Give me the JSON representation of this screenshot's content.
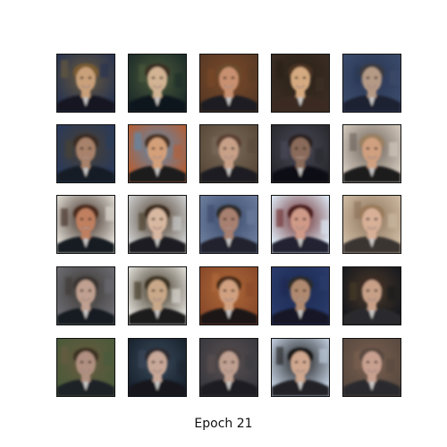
{
  "figure": {
    "caption": "Epoch 21",
    "grid": {
      "rows": 5,
      "cols": 5
    }
  },
  "samples": [
    {
      "bg": "#2a3550",
      "accent": "#6b5a3c",
      "skin": "#c9a07a",
      "hair": "#7a5b32",
      "suit": "#151821"
    },
    {
      "bg": "#1f2e2a",
      "accent": "#4c5a3a",
      "skin": "#d2b393",
      "hair": "#3a2f22",
      "suit": "#10131a"
    },
    {
      "bg": "#5a3a25",
      "accent": "#7a4a2a",
      "skin": "#c89070",
      "hair": "#6a4a2a",
      "suit": "#1a1c24"
    },
    {
      "bg": "#3a2c22",
      "accent": "#2a2218",
      "skin": "#d6aa80",
      "hair": "#4a3020",
      "suit": "#3a2a22"
    },
    {
      "bg": "#3a4a6a",
      "accent": "#2a3552",
      "skin": "#b59a86",
      "hair": "#3a3a40",
      "suit": "#1a2030"
    },
    {
      "bg": "#2a3a5a",
      "accent": "#4a4030",
      "skin": "#a8826a",
      "hair": "#3a2c22",
      "suit": "#161a26"
    },
    {
      "bg": "#b0603a",
      "accent": "#5a8ab0",
      "skin": "#d4a07a",
      "hair": "#4a3020",
      "suit": "#1a1a1a"
    },
    {
      "bg": "#5a4a3a",
      "accent": "#7a6a5a",
      "skin": "#c8a088",
      "hair": "#5a4030",
      "suit": "#1e1e24"
    },
    {
      "bg": "#2a2a30",
      "accent": "#4a4a58",
      "skin": "#8a6a5a",
      "hair": "#2a2020",
      "suit": "#101014"
    },
    {
      "bg": "#cfc4b8",
      "accent": "#6a6058",
      "skin": "#d0a080",
      "hair": "#9a8060",
      "suit": "#1a1a1e"
    },
    {
      "bg": "#d8d4cc",
      "accent": "#3a2a22",
      "skin": "#c08060",
      "hair": "#4a2a1a",
      "suit": "#181a22"
    },
    {
      "bg": "#c8c8c8",
      "accent": "#4a3a2a",
      "skin": "#d8b8a0",
      "hair": "#3a2a1a",
      "suit": "#1a1a20"
    },
    {
      "bg": "#6a7a9a",
      "accent": "#3a4a6a",
      "skin": "#a88070",
      "hair": "#2a2a2a",
      "suit": "#20242e"
    },
    {
      "bg": "#d8e2ee",
      "accent": "#6a2a2a",
      "skin": "#d09a88",
      "hair": "#4a1a1a",
      "suit": "#202430"
    },
    {
      "bg": "#cbb8a0",
      "accent": "#8a7058",
      "skin": "#d8b098",
      "hair": "#9a7a5a",
      "suit": "#3a3430"
    },
    {
      "bg": "#6a6a70",
      "accent": "#3a3530",
      "skin": "#c0a090",
      "hair": "#3a3530",
      "suit": "#181a20"
    },
    {
      "bg": "#d8d6d0",
      "accent": "#3a3020",
      "skin": "#c8a888",
      "hair": "#3a3020",
      "suit": "#1a1a1a"
    },
    {
      "bg": "#8a4a2a",
      "accent": "#b06a3a",
      "skin": "#d0a080",
      "hair": "#4a2a18",
      "suit": "#1a1616"
    },
    {
      "bg": "#2a3a6a",
      "accent": "#1a2a50",
      "skin": "#b08a70",
      "hair": "#2a2a2a",
      "suit": "#141826"
    },
    {
      "bg": "#1a1a1e",
      "accent": "#4a3a2a",
      "skin": "#c8a088",
      "hair": "#3a2a20",
      "suit": "#2a2a2e"
    },
    {
      "bg": "#4a5a3a",
      "accent": "#6a5a40",
      "skin": "#b09080",
      "hair": "#3a3020",
      "suit": "#1e2028"
    },
    {
      "bg": "#1a2430",
      "accent": "#3a4a5a",
      "skin": "#c8a898",
      "hair": "#2a2a30",
      "suit": "#12161e"
    },
    {
      "bg": "#3a3a40",
      "accent": "#5a5050",
      "skin": "#c0a090",
      "hair": "#4a4040",
      "suit": "#1a1a20"
    },
    {
      "bg": "#b8c4d4",
      "accent": "#1a1a1a",
      "skin": "#d0a890",
      "hair": "#151515",
      "suit": "#202028"
    },
    {
      "bg": "#5a4a40",
      "accent": "#7a6050",
      "skin": "#c8a090",
      "hair": "#5a4a40",
      "suit": "#2a2a2e"
    }
  ]
}
